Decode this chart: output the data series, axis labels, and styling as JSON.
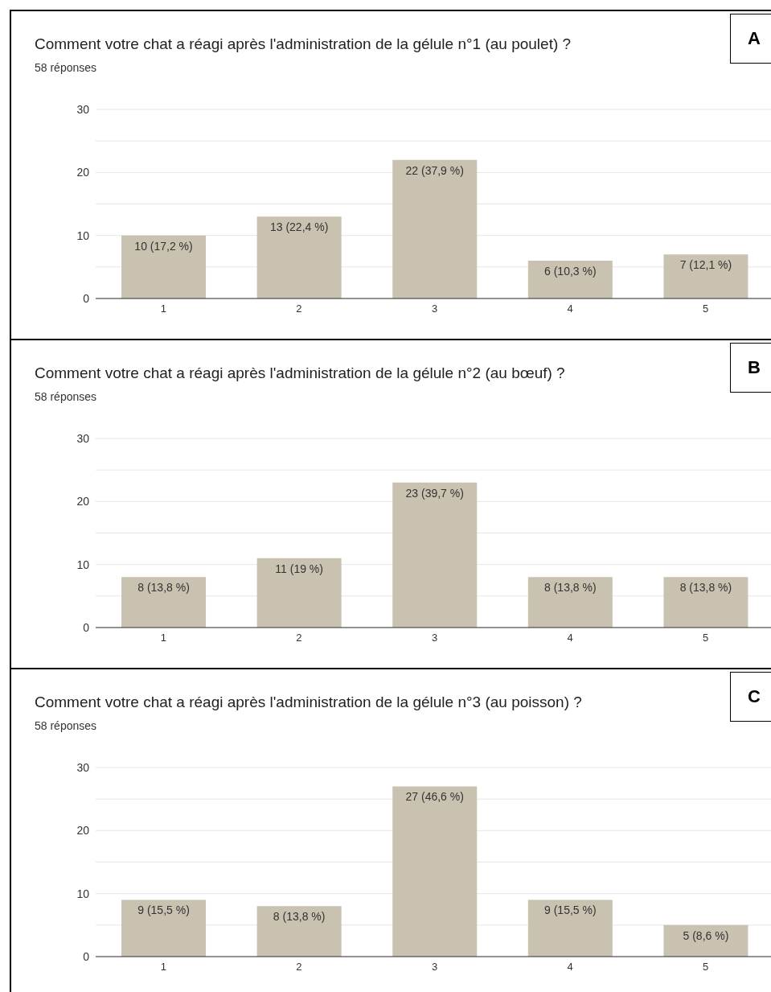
{
  "chart_data": [
    {
      "type": "bar",
      "title": "Comment votre chat a réagi après l'administration de la gélule n°1 (au poulet) ?",
      "subtitle": "58 réponses",
      "categories": [
        "1",
        "2",
        "3",
        "4",
        "5"
      ],
      "values": [
        10,
        13,
        22,
        6,
        7
      ],
      "value_labels": [
        "10 (17,2 %)",
        "13 (22,4 %)",
        "22 (37,9 %)",
        "6 (10,3 %)",
        "7 (12,1 %)"
      ],
      "color": "#c9c2b1",
      "ylim": [
        0,
        30
      ],
      "yticks": [
        0,
        {
          "value": 5,
          "label": null
        },
        10,
        {
          "value": 15,
          "label": null
        },
        20,
        {
          "value": 25,
          "label": null
        },
        30
      ],
      "grid": "y",
      "annotations": [
        "A"
      ]
    },
    {
      "type": "bar",
      "title": "Comment votre chat a réagi après l'administration de la gélule n°2 (au bœuf) ?",
      "subtitle": "58 réponses",
      "categories": [
        "1",
        "2",
        "3",
        "4",
        "5"
      ],
      "values": [
        8,
        11,
        23,
        8,
        8
      ],
      "value_labels": [
        "8 (13,8 %)",
        "11 (19 %)",
        "23 (39,7 %)",
        "8 (13,8 %)",
        "8 (13,8 %)"
      ],
      "color": "#c9c2b1",
      "ylim": [
        0,
        30
      ],
      "yticks": [
        0,
        {
          "value": 5,
          "label": null
        },
        10,
        {
          "value": 15,
          "label": null
        },
        20,
        {
          "value": 25,
          "label": null
        },
        30
      ],
      "grid": "y",
      "annotations": [
        "B"
      ]
    },
    {
      "type": "bar",
      "title": "Comment votre chat a réagi après l'administration de la gélule n°3 (au poisson) ?",
      "subtitle": "58 réponses",
      "categories": [
        "1",
        "2",
        "3",
        "4",
        "5"
      ],
      "values": [
        9,
        8,
        27,
        9,
        5
      ],
      "value_labels": [
        "9 (15,5 %)",
        "8 (13,8 %)",
        "27 (46,6 %)",
        "9 (15,5 %)",
        "5 (8,6 %)"
      ],
      "color": "#c9c2b1",
      "ylim": [
        0,
        30
      ],
      "yticks": [
        0,
        {
          "value": 5,
          "label": null
        },
        10,
        {
          "value": 15,
          "label": null
        },
        20,
        {
          "value": 25,
          "label": null
        },
        30
      ],
      "grid": "y",
      "annotations": [
        "C"
      ]
    }
  ]
}
